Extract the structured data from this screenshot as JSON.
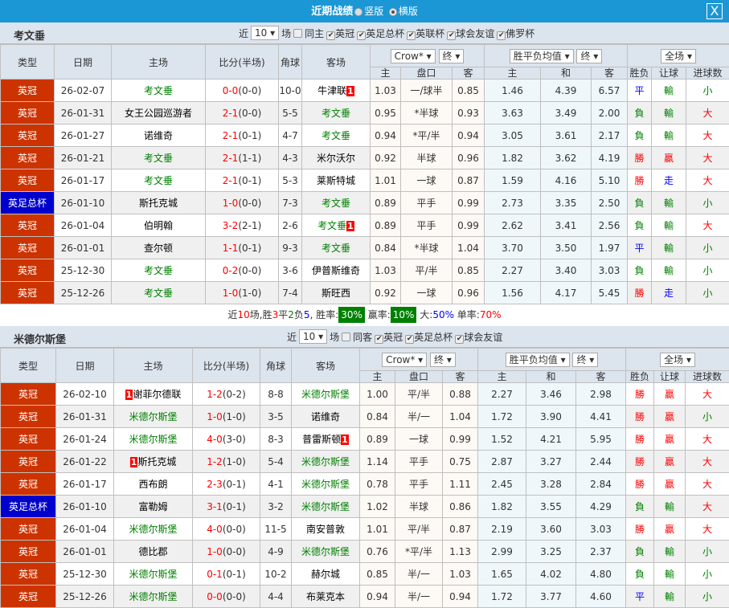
{
  "window": {
    "title": "近期战绩",
    "option_vertical": "竖版",
    "option_horizontal": "横版",
    "selected": "横版",
    "close_label": "X"
  },
  "colors": {
    "title_bar": "#1b97d5",
    "league": "#cc3300",
    "cup": "#0000cc",
    "win": "#ff0000",
    "lose": "#008000",
    "draw": "#0000ff",
    "focus_team": "#008000"
  },
  "headers": {
    "type": "类型",
    "date": "日期",
    "home": "主场",
    "score": "比分(半场)",
    "corner": "角球",
    "away": "客场",
    "company": "Crow*",
    "final": "终",
    "odds_type": "胜平负均值",
    "final2": "终",
    "period": "全场",
    "h": "主",
    "handicap": "盘口",
    "a": "客",
    "h2": "主",
    "d": "和",
    "a2": "客",
    "result": "胜负",
    "hc_result": "让球",
    "ou_result": "进球数"
  },
  "sections": [
    {
      "team": "考文垂",
      "filter": {
        "recent_label": "近",
        "count": "10",
        "unit": "场",
        "same_label": "同主",
        "same_checked": false,
        "competitions": [
          "英冠",
          "英足总杯",
          "英联杯",
          "球会友谊",
          "佛罗杯"
        ]
      },
      "rows": [
        {
          "type": "英冠",
          "cup": false,
          "date": "26-02-07",
          "home": "考文垂",
          "hrc": "",
          "score": "0-0",
          "ht": "(0-0)",
          "corner": "10-0",
          "away": "牛津联",
          "arc": "1",
          "oh": "1.03",
          "hcp": "一/球半",
          "oa": "0.85",
          "w": "1.46",
          "d": "4.39",
          "l": "6.57",
          "res": "平",
          "hres": "輸",
          "ou": "小"
        },
        {
          "type": "英冠",
          "cup": false,
          "date": "26-01-31",
          "home": "女王公园巡游者",
          "hrc": "",
          "score": "2-1",
          "ht": "(0-0)",
          "corner": "5-5",
          "away": "考文垂",
          "arc": "",
          "oh": "0.95",
          "hcp": "*半球",
          "oa": "0.93",
          "w": "3.63",
          "d": "3.49",
          "l": "2.00",
          "res": "負",
          "hres": "輸",
          "ou": "大"
        },
        {
          "type": "英冠",
          "cup": false,
          "date": "26-01-27",
          "home": "诺维奇",
          "hrc": "",
          "score": "2-1",
          "ht": "(0-1)",
          "corner": "4-7",
          "away": "考文垂",
          "arc": "",
          "oh": "0.94",
          "hcp": "*平/半",
          "oa": "0.94",
          "w": "3.05",
          "d": "3.61",
          "l": "2.17",
          "res": "負",
          "hres": "輸",
          "ou": "大"
        },
        {
          "type": "英冠",
          "cup": false,
          "date": "26-01-21",
          "home": "考文垂",
          "hrc": "",
          "score": "2-1",
          "ht": "(1-1)",
          "corner": "4-3",
          "away": "米尔沃尔",
          "arc": "",
          "oh": "0.92",
          "hcp": "半球",
          "oa": "0.96",
          "w": "1.82",
          "d": "3.62",
          "l": "4.19",
          "res": "勝",
          "hres": "贏",
          "ou": "大"
        },
        {
          "type": "英冠",
          "cup": false,
          "date": "26-01-17",
          "home": "考文垂",
          "hrc": "",
          "score": "2-1",
          "ht": "(0-1)",
          "corner": "5-3",
          "away": "莱斯特城",
          "arc": "",
          "oh": "1.01",
          "hcp": "一球",
          "oa": "0.87",
          "w": "1.59",
          "d": "4.16",
          "l": "5.10",
          "res": "勝",
          "hres": "走",
          "ou": "大"
        },
        {
          "type": "英足总杯",
          "cup": true,
          "date": "26-01-10",
          "home": "斯托克城",
          "hrc": "",
          "score": "1-0",
          "ht": "(0-0)",
          "corner": "7-3",
          "away": "考文垂",
          "arc": "",
          "oh": "0.89",
          "hcp": "平手",
          "oa": "0.99",
          "w": "2.73",
          "d": "3.35",
          "l": "2.50",
          "res": "負",
          "hres": "輸",
          "ou": "小"
        },
        {
          "type": "英冠",
          "cup": false,
          "date": "26-01-04",
          "home": "伯明翰",
          "hrc": "",
          "score": "3-2",
          "ht": "(2-1)",
          "corner": "2-6",
          "away": "考文垂",
          "arc": "1",
          "oh": "0.89",
          "hcp": "平手",
          "oa": "0.99",
          "w": "2.62",
          "d": "3.41",
          "l": "2.56",
          "res": "負",
          "hres": "輸",
          "ou": "大"
        },
        {
          "type": "英冠",
          "cup": false,
          "date": "26-01-01",
          "home": "查尔顿",
          "hrc": "",
          "score": "1-1",
          "ht": "(0-1)",
          "corner": "9-3",
          "away": "考文垂",
          "arc": "",
          "oh": "0.84",
          "hcp": "*半球",
          "oa": "1.04",
          "w": "3.70",
          "d": "3.50",
          "l": "1.97",
          "res": "平",
          "hres": "輸",
          "ou": "小"
        },
        {
          "type": "英冠",
          "cup": false,
          "date": "25-12-30",
          "home": "考文垂",
          "hrc": "",
          "score": "0-2",
          "ht": "(0-0)",
          "corner": "3-6",
          "away": "伊普斯维奇",
          "arc": "",
          "oh": "1.03",
          "hcp": "平/半",
          "oa": "0.85",
          "w": "2.27",
          "d": "3.40",
          "l": "3.03",
          "res": "負",
          "hres": "輸",
          "ou": "小"
        },
        {
          "type": "英冠",
          "cup": false,
          "date": "25-12-26",
          "home": "考文垂",
          "hrc": "",
          "score": "1-0",
          "ht": "(1-0)",
          "corner": "7-4",
          "away": "斯旺西",
          "arc": "",
          "oh": "0.92",
          "hcp": "一球",
          "oa": "0.96",
          "w": "1.56",
          "d": "4.17",
          "l": "5.45",
          "res": "勝",
          "hres": "走",
          "ou": "小"
        }
      ],
      "summary": {
        "p1": "近",
        "n": "10",
        "p2": "场,胜",
        "w": "3",
        "p3": "平",
        "d": "2",
        "p4": "负",
        "l": "5",
        "p5": ", 胜率:",
        "win_rate": "30%",
        "p6": " 赢率:",
        "hc_rate": "10%",
        "p7": " 大:",
        "over_rate": "50%",
        "p8": " 单率:",
        "odd_rate": "70%"
      }
    },
    {
      "team": "米德尔斯堡",
      "filter": {
        "recent_label": "近",
        "count": "10",
        "unit": "场",
        "same_label": "同客",
        "same_checked": false,
        "competitions": [
          "英冠",
          "英足总杯",
          "球会友谊"
        ]
      },
      "rows": [
        {
          "type": "英冠",
          "cup": false,
          "date": "26-02-10",
          "home": "谢菲尔德联",
          "hrc": "1",
          "score": "1-2",
          "ht": "(0-2)",
          "corner": "8-8",
          "away": "米德尔斯堡",
          "arc": "",
          "oh": "1.00",
          "hcp": "平/半",
          "oa": "0.88",
          "w": "2.27",
          "d": "3.46",
          "l": "2.98",
          "res": "勝",
          "hres": "贏",
          "ou": "大"
        },
        {
          "type": "英冠",
          "cup": false,
          "date": "26-01-31",
          "home": "米德尔斯堡",
          "hrc": "",
          "score": "1-0",
          "ht": "(1-0)",
          "corner": "3-5",
          "away": "诺维奇",
          "arc": "",
          "oh": "0.84",
          "hcp": "半/一",
          "oa": "1.04",
          "w": "1.72",
          "d": "3.90",
          "l": "4.41",
          "res": "勝",
          "hres": "贏",
          "ou": "小"
        },
        {
          "type": "英冠",
          "cup": false,
          "date": "26-01-24",
          "home": "米德尔斯堡",
          "hrc": "",
          "score": "4-0",
          "ht": "(3-0)",
          "corner": "8-3",
          "away": "普雷斯顿",
          "arc": "1",
          "oh": "0.89",
          "hcp": "一球",
          "oa": "0.99",
          "w": "1.52",
          "d": "4.21",
          "l": "5.95",
          "res": "勝",
          "hres": "贏",
          "ou": "大"
        },
        {
          "type": "英冠",
          "cup": false,
          "date": "26-01-22",
          "home": "斯托克城",
          "hrc": "1",
          "score": "1-2",
          "ht": "(1-0)",
          "corner": "5-4",
          "away": "米德尔斯堡",
          "arc": "",
          "oh": "1.14",
          "hcp": "平手",
          "oa": "0.75",
          "w": "2.87",
          "d": "3.27",
          "l": "2.44",
          "res": "勝",
          "hres": "贏",
          "ou": "大"
        },
        {
          "type": "英冠",
          "cup": false,
          "date": "26-01-17",
          "home": "西布朗",
          "hrc": "",
          "score": "2-3",
          "ht": "(0-1)",
          "corner": "4-1",
          "away": "米德尔斯堡",
          "arc": "",
          "oh": "0.78",
          "hcp": "平手",
          "oa": "1.11",
          "w": "2.45",
          "d": "3.28",
          "l": "2.84",
          "res": "勝",
          "hres": "贏",
          "ou": "大"
        },
        {
          "type": "英足总杯",
          "cup": true,
          "date": "26-01-10",
          "home": "富勒姆",
          "hrc": "",
          "score": "3-1",
          "ht": "(0-1)",
          "corner": "3-2",
          "away": "米德尔斯堡",
          "arc": "",
          "oh": "1.02",
          "hcp": "半球",
          "oa": "0.86",
          "w": "1.82",
          "d": "3.55",
          "l": "4.29",
          "res": "負",
          "hres": "輸",
          "ou": "大"
        },
        {
          "type": "英冠",
          "cup": false,
          "date": "26-01-04",
          "home": "米德尔斯堡",
          "hrc": "",
          "score": "4-0",
          "ht": "(0-0)",
          "corner": "11-5",
          "away": "南安普敦",
          "arc": "",
          "oh": "1.01",
          "hcp": "平/半",
          "oa": "0.87",
          "w": "2.19",
          "d": "3.60",
          "l": "3.03",
          "res": "勝",
          "hres": "贏",
          "ou": "大"
        },
        {
          "type": "英冠",
          "cup": false,
          "date": "26-01-01",
          "home": "德比郡",
          "hrc": "",
          "score": "1-0",
          "ht": "(0-0)",
          "corner": "4-9",
          "away": "米德尔斯堡",
          "arc": "",
          "oh": "0.76",
          "hcp": "*平/半",
          "oa": "1.13",
          "w": "2.99",
          "d": "3.25",
          "l": "2.37",
          "res": "負",
          "hres": "輸",
          "ou": "小"
        },
        {
          "type": "英冠",
          "cup": false,
          "date": "25-12-30",
          "home": "米德尔斯堡",
          "hrc": "",
          "score": "0-1",
          "ht": "(0-1)",
          "corner": "10-2",
          "away": "赫尔城",
          "arc": "",
          "oh": "0.85",
          "hcp": "半/一",
          "oa": "1.03",
          "w": "1.65",
          "d": "4.02",
          "l": "4.80",
          "res": "負",
          "hres": "輸",
          "ou": "小"
        },
        {
          "type": "英冠",
          "cup": false,
          "date": "25-12-26",
          "home": "米德尔斯堡",
          "hrc": "",
          "score": "0-0",
          "ht": "(0-0)",
          "corner": "4-4",
          "away": "布莱克本",
          "arc": "",
          "oh": "0.94",
          "hcp": "半/一",
          "oa": "0.94",
          "w": "1.72",
          "d": "3.77",
          "l": "4.60",
          "res": "平",
          "hres": "輸",
          "ou": "小"
        }
      ]
    }
  ]
}
